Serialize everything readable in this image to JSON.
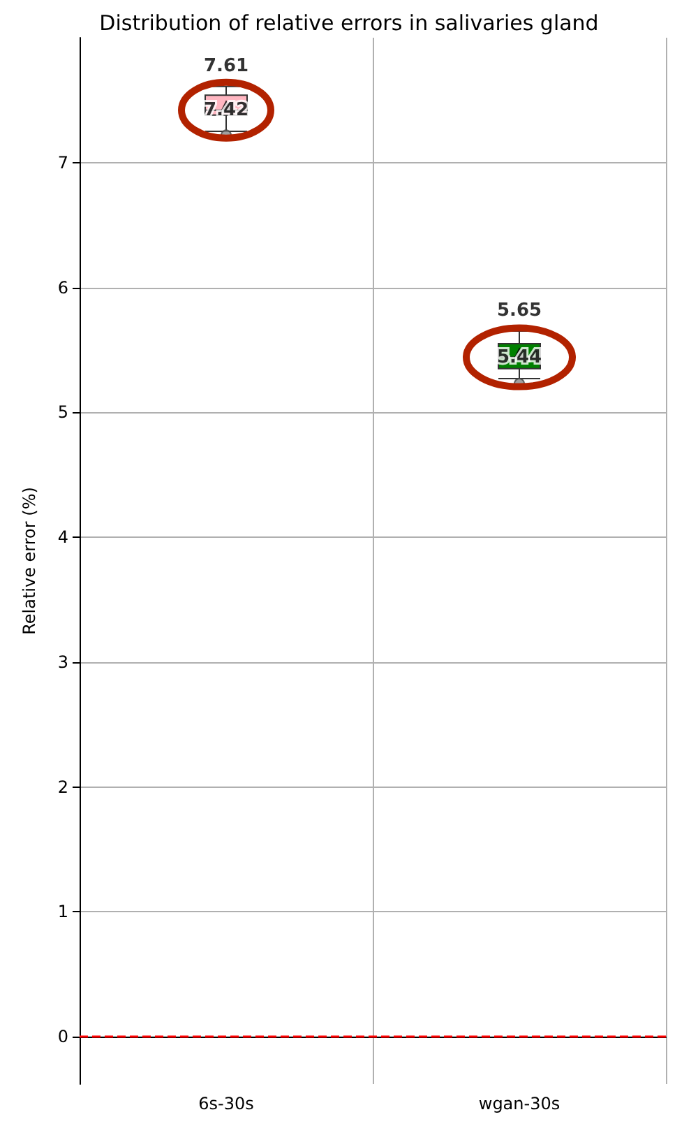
{
  "chart_data": {
    "type": "box",
    "title": "Distribution of relative errors in salivaries gland",
    "ylabel": "Relative error (%)",
    "categories": [
      "6s-30s",
      "wgan-30s"
    ],
    "boxes": [
      {
        "low": 7.25,
        "q1": 7.38,
        "median": 7.42,
        "q3": 7.54,
        "high": 7.61,
        "mean": 7.45,
        "outliers": [
          7.22
        ]
      },
      {
        "low": 5.27,
        "q1": 5.35,
        "median": 5.44,
        "q3": 5.55,
        "high": 5.65,
        "mean": 5.47,
        "outliers": [
          5.23
        ]
      }
    ],
    "colors": [
      "#ffb6c1",
      "#008000"
    ],
    "ylim": [
      -0.38,
      8.0
    ],
    "yticks": [
      0,
      1,
      2,
      3,
      4,
      5,
      6,
      7
    ],
    "grid": true,
    "ref_lines": [
      {
        "axis": "y",
        "value": 0,
        "color": "#ff0000",
        "line_style": "dashed"
      }
    ],
    "annotations": [
      {
        "text": "7.61",
        "x": "6s-30s",
        "y": 7.61
      },
      {
        "text": "7.42",
        "x": "6s-30s",
        "y": 7.42
      },
      {
        "text": "5.65",
        "x": "wgan-30s",
        "y": 5.65
      },
      {
        "text": "5.44",
        "x": "wgan-30s",
        "y": 5.44
      }
    ]
  }
}
